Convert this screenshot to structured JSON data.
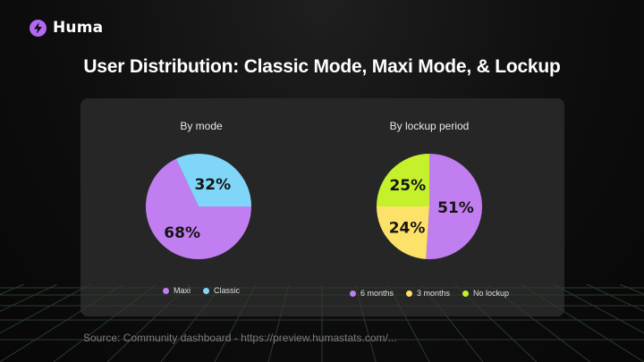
{
  "brand": {
    "name": "Huma"
  },
  "title": "User Distribution: Classic Mode, Maxi Mode, & Lockup",
  "source": "Source: Community dashboard - https://preview.humastats.com/...",
  "chart_data": [
    {
      "type": "pie",
      "title": "By mode",
      "legend_position": "bottom",
      "slices": [
        {
          "label": "Maxi",
          "value": 68,
          "display": "68%",
          "color": "#c17ef0"
        },
        {
          "label": "Classic",
          "value": 32,
          "display": "32%",
          "color": "#7fd6f8"
        }
      ]
    },
    {
      "type": "pie",
      "title": "By lockup period",
      "legend_position": "bottom",
      "slices": [
        {
          "label": "6 months",
          "value": 51,
          "display": "51%",
          "color": "#c17ef0"
        },
        {
          "label": "3 months",
          "value": 24,
          "display": "24%",
          "color": "#fde26a"
        },
        {
          "label": "No lockup",
          "value": 25,
          "display": "25%",
          "color": "#c5f12c"
        }
      ]
    }
  ]
}
